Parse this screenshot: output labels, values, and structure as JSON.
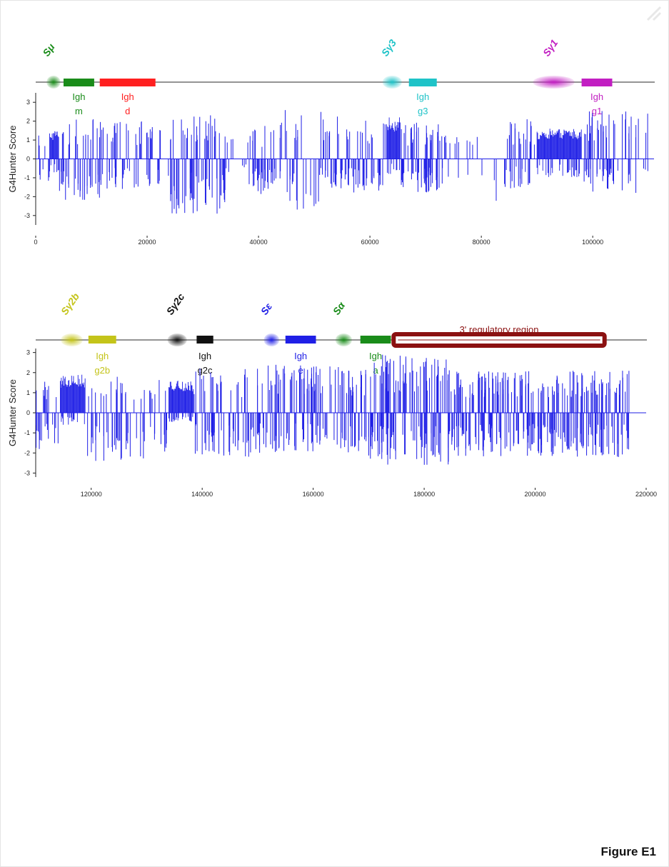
{
  "figure_label": "Figure E1",
  "colors": {
    "score_bars": "#1f1fe6",
    "backbone": "#555555",
    "green": "#1a8c1a",
    "red": "#ff2020",
    "cyan": "#1fc3c8",
    "magenta": "#c21fc2",
    "olive": "#c4c41a",
    "black": "#111111",
    "blue": "#1f1fe6",
    "dark_red": "#8b1111"
  },
  "chart_data": [
    {
      "type": "bar",
      "ylabel": "G4Hunter Score",
      "xlim": [
        0,
        111000
      ],
      "ylim": [
        -3.5,
        3.5
      ],
      "xticks": [
        0,
        20000,
        40000,
        60000,
        80000,
        100000
      ],
      "yticks": [
        -3,
        -2,
        -1,
        0,
        1,
        2,
        3
      ],
      "genes": [
        {
          "name": "Igh m",
          "label_line1": "Igh",
          "label_line2": "m",
          "start": 5000,
          "end": 10500,
          "color": "#1a8c1a"
        },
        {
          "name": "Igh d",
          "label_line1": "Igh",
          "label_line2": "d",
          "start": 11500,
          "end": 21500,
          "color": "#ff2020"
        },
        {
          "name": "Igh g3",
          "label_line1": "Igh",
          "label_line2": "g3",
          "start": 67000,
          "end": 72000,
          "color": "#1fc3c8"
        },
        {
          "name": "Igh g1",
          "label_line1": "Igh",
          "label_line2": "g1",
          "start": 98000,
          "end": 103500,
          "color": "#c21fc2"
        }
      ],
      "switch_regions": [
        {
          "label": "Sμ",
          "center": 3200,
          "width": 2500,
          "color": "#1a8c1a"
        },
        {
          "label": "Sγ3",
          "center": 64000,
          "width": 3500,
          "color": "#1fc3c8"
        },
        {
          "label": "Sγ1",
          "center": 93000,
          "width": 7500,
          "color": "#c21fc2"
        }
      ],
      "dense_blocks": [
        {
          "start": 2500,
          "end": 4200,
          "min": -0.8,
          "max": 1.5
        },
        {
          "start": 63000,
          "end": 65500,
          "min": -0.8,
          "max": 2.2
        },
        {
          "start": 90000,
          "end": 98000,
          "min": -1.0,
          "max": 1.6
        }
      ],
      "sparse_segments": [
        {
          "start": 0,
          "end": 2500,
          "count": 8,
          "min": -1.2,
          "max": 1.5
        },
        {
          "start": 4200,
          "end": 12000,
          "count": 55,
          "min": -2.2,
          "max": 2.1
        },
        {
          "start": 12000,
          "end": 20000,
          "count": 38,
          "min": -1.6,
          "max": 2.1
        },
        {
          "start": 20000,
          "end": 24000,
          "count": 18,
          "min": -1.6,
          "max": 1.8
        },
        {
          "start": 24000,
          "end": 34000,
          "count": 70,
          "min": -2.9,
          "max": 2.4
        },
        {
          "start": 34000,
          "end": 38000,
          "count": 8,
          "min": -0.8,
          "max": 1.1
        },
        {
          "start": 38000,
          "end": 44000,
          "count": 40,
          "min": -1.9,
          "max": 1.8
        },
        {
          "start": 44000,
          "end": 51000,
          "count": 25,
          "min": -2.8,
          "max": 2.6
        },
        {
          "start": 51000,
          "end": 56000,
          "count": 34,
          "min": -1.6,
          "max": 2.5
        },
        {
          "start": 56000,
          "end": 63000,
          "count": 40,
          "min": -1.8,
          "max": 2.2
        },
        {
          "start": 65500,
          "end": 73000,
          "count": 70,
          "min": -1.8,
          "max": 2.0
        },
        {
          "start": 73000,
          "end": 77000,
          "count": 10,
          "min": -1.0,
          "max": 1.5
        },
        {
          "start": 77000,
          "end": 84000,
          "count": 8,
          "min": -2.8,
          "max": 1.2
        },
        {
          "start": 84000,
          "end": 90000,
          "count": 36,
          "min": -1.6,
          "max": 2.1
        },
        {
          "start": 98000,
          "end": 104000,
          "count": 50,
          "min": -1.8,
          "max": 2.6
        },
        {
          "start": 104000,
          "end": 110000,
          "count": 22,
          "min": -2.0,
          "max": 2.6
        }
      ]
    },
    {
      "type": "bar",
      "ylabel": "G4Hunter Score",
      "xlim": [
        110000,
        220000
      ],
      "ylim": [
        -3.2,
        3.2
      ],
      "xticks": [
        120000,
        140000,
        160000,
        180000,
        200000,
        220000
      ],
      "yticks": [
        -3,
        -2,
        -1,
        0,
        1,
        2,
        3
      ],
      "genes": [
        {
          "name": "Igh g2b",
          "label_line1": "Igh",
          "label_line2": "g2b",
          "start": 119500,
          "end": 124500,
          "color": "#c4c41a"
        },
        {
          "name": "Igh g2c",
          "label_line1": "Igh",
          "label_line2": "g2c",
          "start": 139000,
          "end": 142000,
          "color": "#111111"
        },
        {
          "name": "Igh e",
          "label_line1": "Igh",
          "label_line2": "e",
          "start": 155000,
          "end": 160500,
          "color": "#1f1fe6"
        },
        {
          "name": "Igh a",
          "label_line1": "Igh",
          "label_line2": "a",
          "start": 168500,
          "end": 174000,
          "color": "#1a8c1a"
        }
      ],
      "switch_regions": [
        {
          "label": "Sγ2b",
          "center": 116500,
          "width": 4000,
          "color": "#c4c41a"
        },
        {
          "label": "Sγ2c",
          "center": 135500,
          "width": 3500,
          "color": "#111111"
        },
        {
          "label": "Sε",
          "center": 152500,
          "width": 2800,
          "color": "#1f1fe6"
        },
        {
          "label": "Sα",
          "center": 165500,
          "width": 3000,
          "color": "#1a8c1a"
        }
      ],
      "regulatory_region": {
        "label": "3' regulatory region",
        "start": 174500,
        "end": 212500,
        "color": "#8b1111"
      },
      "dense_blocks": [
        {
          "start": 114500,
          "end": 119000,
          "min": -0.6,
          "max": 1.9
        },
        {
          "start": 134000,
          "end": 138500,
          "min": -0.5,
          "max": 1.6
        }
      ],
      "sparse_segments": [
        {
          "start": 110000,
          "end": 114500,
          "count": 26,
          "min": -2.2,
          "max": 1.6
        },
        {
          "start": 119000,
          "end": 134000,
          "count": 70,
          "min": -2.4,
          "max": 1.8
        },
        {
          "start": 138500,
          "end": 150000,
          "count": 70,
          "min": -2.2,
          "max": 2.2
        },
        {
          "start": 150000,
          "end": 170000,
          "count": 150,
          "min": -2.0,
          "max": 2.4
        },
        {
          "start": 170000,
          "end": 185000,
          "count": 140,
          "min": -2.6,
          "max": 2.9
        },
        {
          "start": 185000,
          "end": 217000,
          "count": 300,
          "min": -2.2,
          "max": 2.1
        }
      ]
    }
  ]
}
